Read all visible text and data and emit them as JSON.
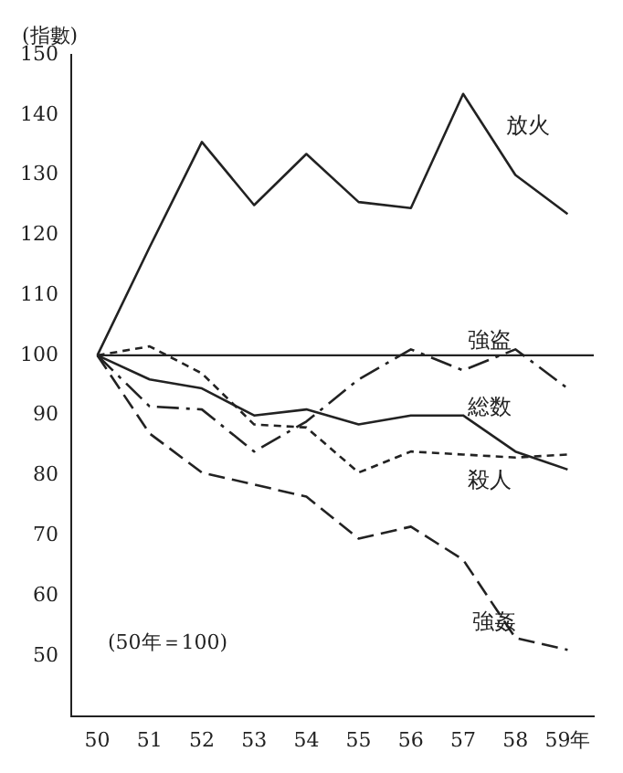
{
  "chart_data": {
    "type": "line",
    "ylabel": "(指數)",
    "categories": [
      "50",
      "51",
      "52",
      "53",
      "54",
      "55",
      "56",
      "57",
      "58",
      "59年"
    ],
    "series": [
      {
        "name": "放火",
        "color": "#222222",
        "line_style": "solid",
        "values": [
          100,
          118,
          135.5,
          125,
          133.5,
          125.5,
          124.5,
          143.5,
          130,
          123.5
        ]
      },
      {
        "name": "強盗",
        "color": "#222222",
        "line_style": "dashed",
        "values": [
          100,
          91.5,
          91,
          84,
          89,
          96,
          101,
          97.5,
          101,
          94.5
        ]
      },
      {
        "name": "総数",
        "color": "#222222",
        "line_style": "solid",
        "values": [
          100,
          96,
          94.5,
          90,
          91,
          88.5,
          90,
          90,
          84,
          81
        ]
      },
      {
        "name": "殺人",
        "color": "#222222",
        "line_style": "dashed",
        "values": [
          100,
          101.5,
          97,
          88.5,
          88,
          80.5,
          84,
          83.5,
          83,
          83.5
        ]
      },
      {
        "name": "強姦",
        "color": "#222222",
        "line_style": "dashed",
        "values": [
          100,
          87,
          80.5,
          78.5,
          76.5,
          69.5,
          71.5,
          66,
          53,
          51
        ]
      }
    ],
    "ylim": [
      40,
      150
    ],
    "yticks": [
      50,
      60,
      70,
      80,
      90,
      100,
      110,
      120,
      130,
      140,
      150
    ],
    "ref_lines": [
      {
        "axis": "y",
        "value": 100,
        "color": "#222222"
      }
    ],
    "annotations": [
      "(50年＝100)"
    ],
    "marker": "none",
    "grid": false,
    "legend": false
  }
}
